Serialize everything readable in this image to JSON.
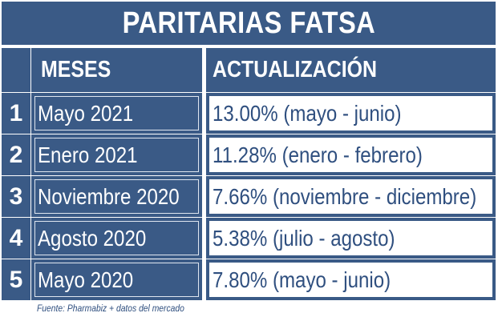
{
  "title": "PARITARIAS FATSA",
  "headers": {
    "months": "MESES",
    "update": "ACTUALIZACIÓN"
  },
  "rows": [
    {
      "index": "1",
      "month": "Mayo 2021",
      "update": "13.00% (mayo - junio)"
    },
    {
      "index": "2",
      "month": "Enero 2021",
      "update": "11.28% (enero - febrero)"
    },
    {
      "index": "3",
      "month": "Noviembre 2020",
      "update": "7.66% (noviembre - diciembre)"
    },
    {
      "index": "4",
      "month": "Agosto 2020",
      "update": "5.38% (julio - agosto)"
    },
    {
      "index": "5",
      "month": "Mayo 2020",
      "update": "7.80% (mayo - junio)"
    }
  ],
  "source": "Fuente: Pharmabiz + datos del mercado",
  "colors": {
    "header_blue": "#3a5a86",
    "value_text": "#2f4f7f",
    "background": "#ffffff"
  }
}
